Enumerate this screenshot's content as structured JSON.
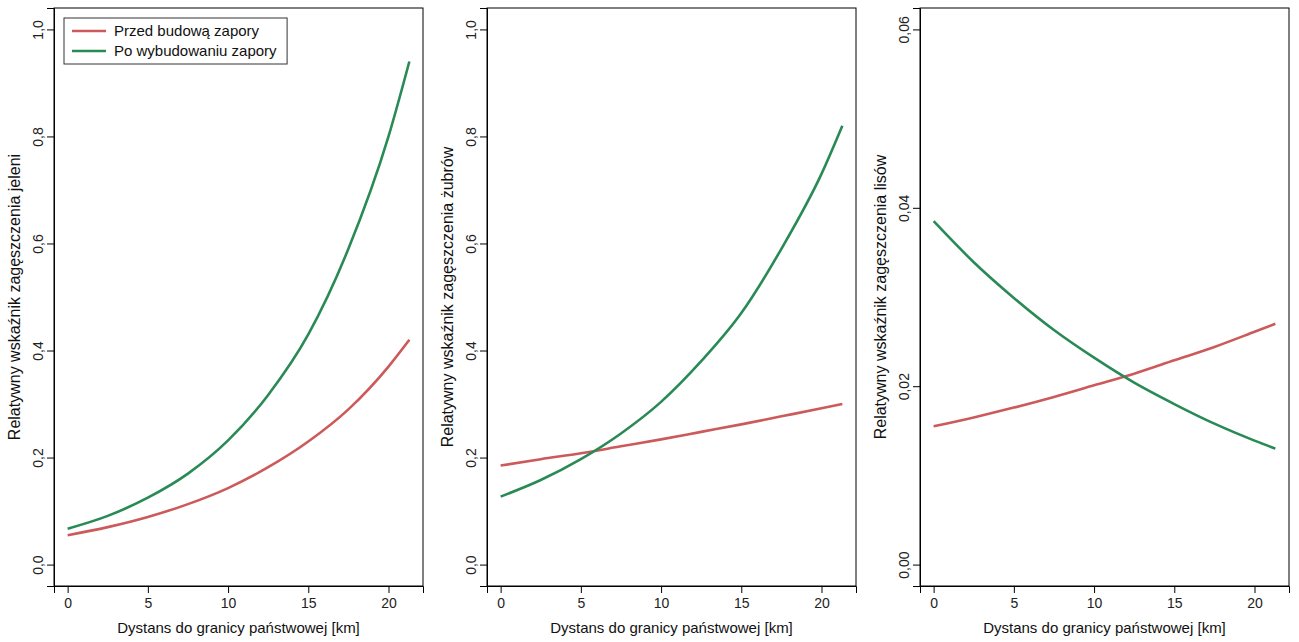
{
  "chart_data": [
    {
      "type": "line",
      "xlabel": "Dystans do granicy państwowej [km]",
      "ylabel": "Relatywny wskaźnik zagęszczenia jeleni",
      "x": [
        0,
        2.5,
        5,
        7.5,
        10,
        12.5,
        15,
        17.5,
        20,
        21.3
      ],
      "series": [
        {
          "name": "Przed budową zapory",
          "color": "#cc5a5a",
          "values": [
            0.055,
            0.07,
            0.089,
            0.113,
            0.143,
            0.182,
            0.23,
            0.29,
            0.37,
            0.42
          ]
        },
        {
          "name": "Po wybudowaniu zapory",
          "color": "#2a8a55",
          "values": [
            0.067,
            0.091,
            0.125,
            0.17,
            0.232,
            0.317,
            0.43,
            0.59,
            0.8,
            0.94
          ]
        }
      ],
      "xlim": [
        -0.85,
        22.15
      ],
      "ylim": [
        -0.04,
        1.04
      ],
      "xticks": [
        0,
        5,
        10,
        15,
        20
      ],
      "yticks": [
        {
          "value": 0,
          "label": "0,0"
        },
        {
          "value": 0.2,
          "label": "0,2"
        },
        {
          "value": 0.4,
          "label": "0,4"
        },
        {
          "value": 0.6,
          "label": "0,6"
        },
        {
          "value": 0.8,
          "label": "0,8"
        },
        {
          "value": 1.0,
          "label": "1,0"
        }
      ],
      "legend": "top-left",
      "grid": false
    },
    {
      "type": "line",
      "xlabel": "Dystans do granicy państwowej [km]",
      "ylabel": "Relatywny wskaźnik zagęszczenia żubrów",
      "x": [
        0,
        2.5,
        5,
        7.5,
        10,
        12.5,
        15,
        17.5,
        20,
        21.3
      ],
      "series": [
        {
          "color": "#cc5a5a",
          "values": [
            0.185,
            0.197,
            0.208,
            0.221,
            0.234,
            0.248,
            0.262,
            0.277,
            0.292,
            0.3
          ]
        },
        {
          "color": "#2a8a55",
          "values": [
            0.127,
            0.158,
            0.197,
            0.245,
            0.304,
            0.38,
            0.47,
            0.59,
            0.73,
            0.82
          ]
        }
      ],
      "xlim": [
        -0.85,
        22.15
      ],
      "ylim": [
        -0.04,
        1.04
      ],
      "xticks": [
        0,
        5,
        10,
        15,
        20
      ],
      "yticks": [
        {
          "value": 0,
          "label": "0,0"
        },
        {
          "value": 0.2,
          "label": "0,2"
        },
        {
          "value": 0.4,
          "label": "0,4"
        },
        {
          "value": 0.6,
          "label": "0,6"
        },
        {
          "value": 0.8,
          "label": "0,8"
        },
        {
          "value": 1.0,
          "label": "1,0"
        }
      ],
      "grid": false
    },
    {
      "type": "line",
      "xlabel": "Dystans do granicy państwowej [km]",
      "ylabel": "Relatywny wskaźnik zagęszczenia lisów",
      "x": [
        0,
        2.5,
        5,
        7.5,
        10,
        12.5,
        15,
        17.5,
        20,
        21.3
      ],
      "series": [
        {
          "color": "#cc5a5a",
          "values": [
            0.0155,
            0.0165,
            0.0176,
            0.0188,
            0.0201,
            0.0214,
            0.0229,
            0.0244,
            0.0261,
            0.027
          ]
        },
        {
          "color": "#2a8a55",
          "values": [
            0.0385,
            0.0339,
            0.0299,
            0.0263,
            0.0232,
            0.0204,
            0.018,
            0.0158,
            0.0139,
            0.013
          ]
        }
      ],
      "xlim": [
        -0.85,
        22.15
      ],
      "ylim": [
        -0.0024,
        0.0624
      ],
      "xticks": [
        0,
        5,
        10,
        15,
        20
      ],
      "yticks": [
        {
          "value": 0,
          "label": "0,00"
        },
        {
          "value": 0.02,
          "label": "0,02"
        },
        {
          "value": 0.04,
          "label": "0,04"
        },
        {
          "value": 0.06,
          "label": "0,06"
        }
      ],
      "grid": false
    }
  ]
}
